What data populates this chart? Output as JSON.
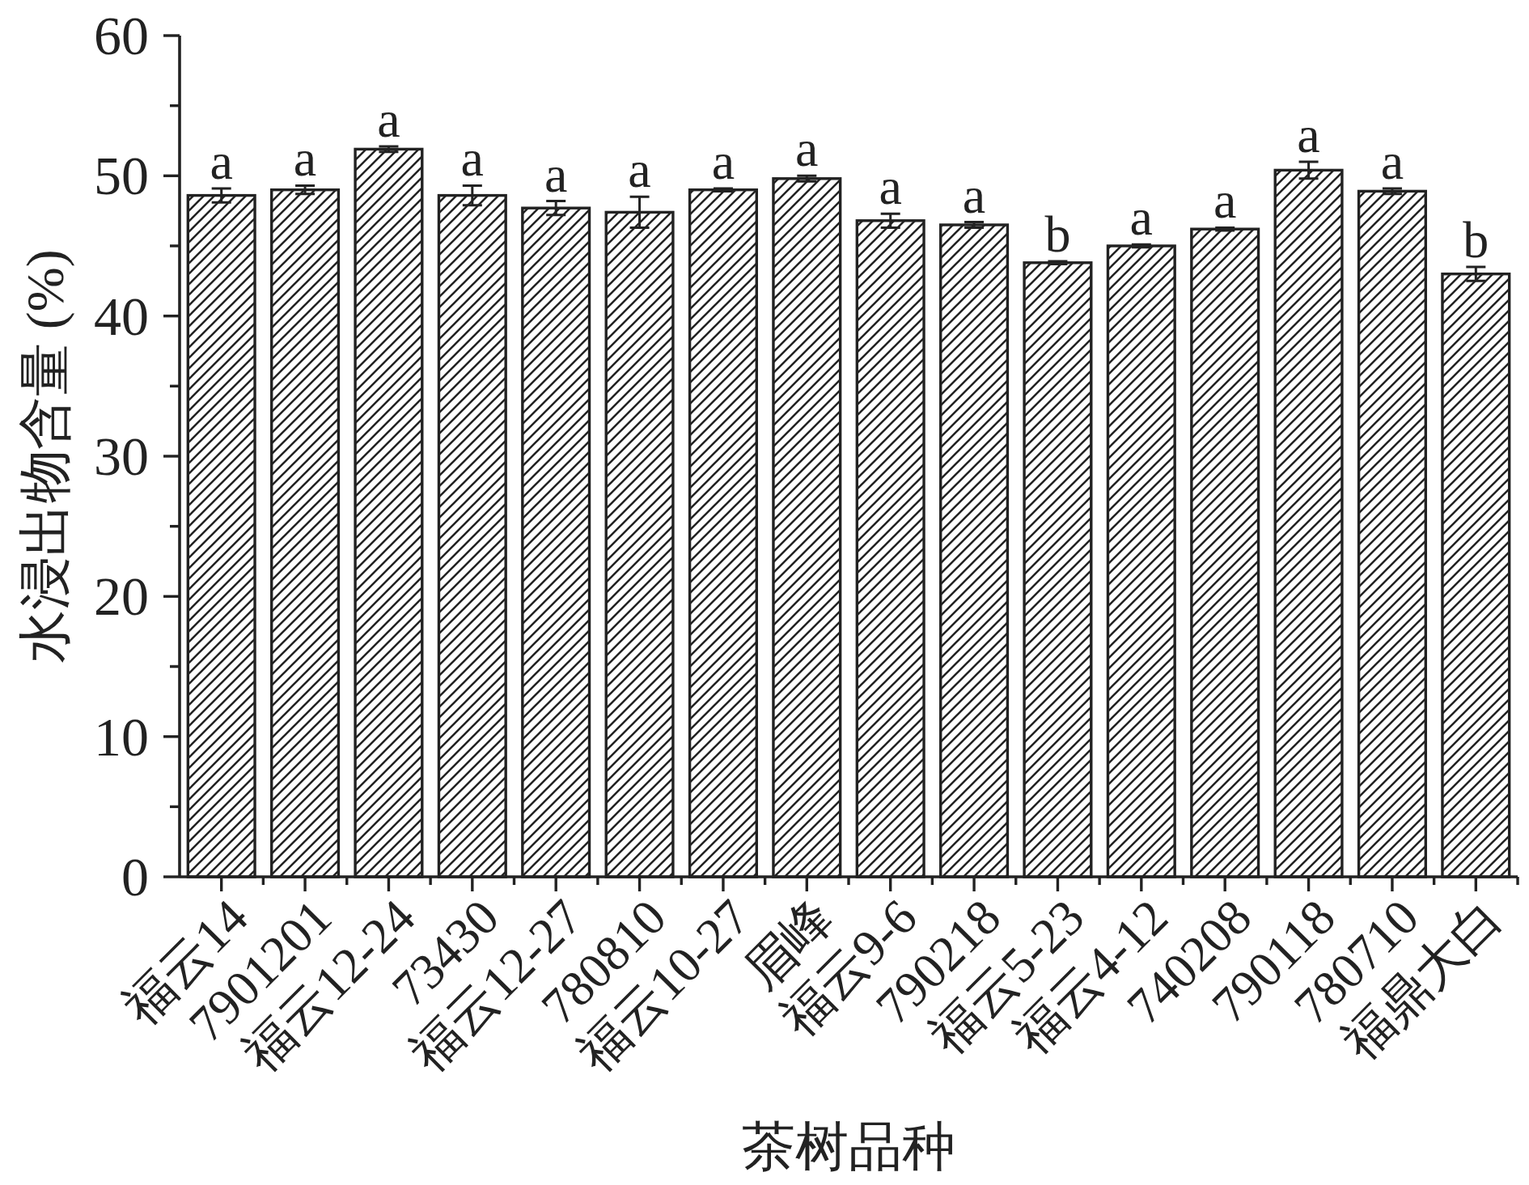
{
  "chart_data": {
    "type": "bar",
    "xlabel": "茶树品种",
    "ylabel": "水浸出物含量 (%)",
    "categories": [
      "福云14",
      "7901201",
      "福云12-24",
      "73430",
      "福云12-27",
      "780810",
      "福云10-27",
      "眉峰",
      "福云9-6",
      "790218",
      "福云5-23",
      "福云4-12",
      "740208",
      "790118",
      "780710",
      "福鼎大白"
    ],
    "values": [
      48.6,
      49.0,
      51.9,
      48.6,
      47.7,
      47.4,
      49.0,
      49.8,
      46.8,
      46.5,
      43.8,
      45.0,
      46.2,
      50.4,
      48.9,
      43.0
    ],
    "errors": [
      0.5,
      0.3,
      0.2,
      0.7,
      0.5,
      1.1,
      0.1,
      0.2,
      0.5,
      0.2,
      0.1,
      0.1,
      0.1,
      0.6,
      0.2,
      0.5
    ],
    "color": "#222222",
    "ylim": [
      0,
      60
    ],
    "yticks": [
      0,
      {
        "value": 5,
        "label": null
      },
      10,
      {
        "value": 15,
        "label": null
      },
      20,
      {
        "value": 25,
        "label": null
      },
      30,
      {
        "value": 35,
        "label": null
      },
      40,
      {
        "value": 45,
        "label": null
      },
      50,
      {
        "value": 55,
        "label": null
      },
      60
    ],
    "annotations": [
      "a",
      "a",
      "a",
      "a",
      "a",
      "a",
      "a",
      "a",
      "a",
      "a",
      "b",
      "a",
      "a",
      "a",
      "a",
      "b"
    ]
  }
}
